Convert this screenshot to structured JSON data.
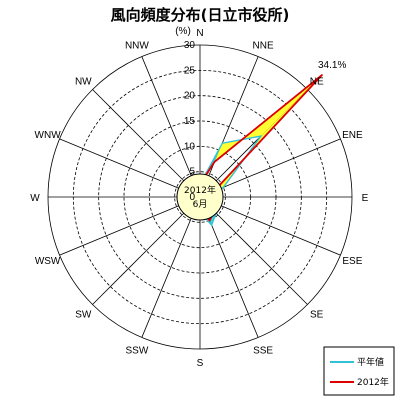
{
  "chart_data": {
    "type": "radar",
    "title": "風向頻度分布(日立市役所)",
    "unit": "(%)",
    "directions": [
      "N",
      "NNE",
      "NE",
      "ENE",
      "E",
      "ESE",
      "SE",
      "SSE",
      "S",
      "SSW",
      "SW",
      "WSW",
      "W",
      "WNW",
      "NW",
      "NNW"
    ],
    "rlim": [
      0,
      30
    ],
    "r_ticks": [
      0,
      5,
      10,
      15,
      20,
      25,
      30
    ],
    "r_tick_labels": [
      "0",
      "5",
      "10",
      "15",
      "20",
      "25",
      "30"
    ],
    "center_label": [
      "2012年",
      "6月"
    ],
    "series": [
      {
        "name": "平年値",
        "color": "#33c0d8",
        "values": [
          2.5,
          11.5,
          17,
          5,
          2.5,
          2.8,
          4.5,
          6,
          3,
          3.2,
          2.8,
          2.4,
          1.5,
          1.2,
          1.8,
          2.5
        ]
      },
      {
        "name": "2012年",
        "color": "#dd0000",
        "values": [
          2.5,
          7.5,
          34.1,
          3,
          2,
          2.8,
          4,
          5,
          2.5,
          2,
          2,
          2.2,
          1.5,
          1.2,
          1.5,
          2
        ]
      }
    ],
    "fill_colors": {
      "normal_exceeds": "#33d8e0",
      "year_exceeds": "#ffff33"
    },
    "annotation": {
      "text": "34.1%",
      "direction": "NE"
    },
    "legend": {
      "position": "bottom-right"
    }
  }
}
